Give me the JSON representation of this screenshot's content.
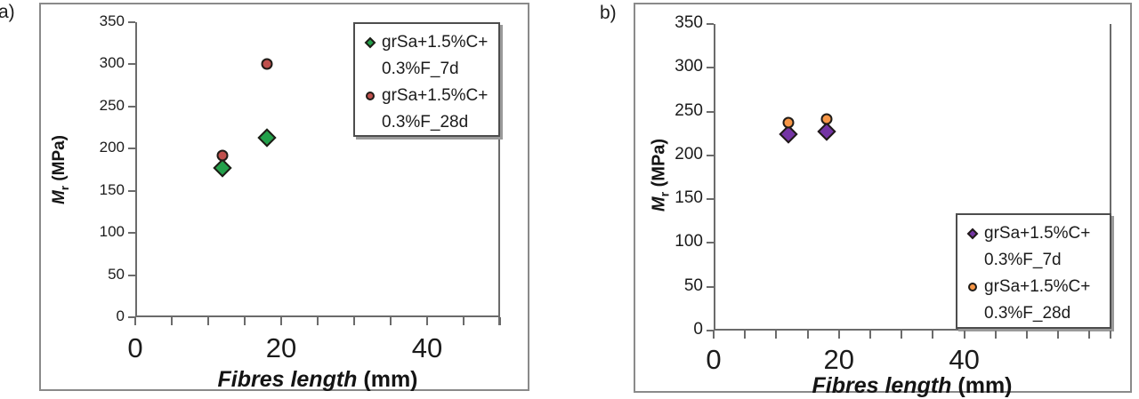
{
  "colors": {
    "background": "#ffffff",
    "panel_border": "#8a8a8a",
    "axis_line": "#6b6b6b",
    "text": "#1b1b1b",
    "legend_border": "#4d4d4d",
    "marker_outline": "#1f1b17",
    "series_a_7d": "#22A04A",
    "series_a_28d": "#C0504D",
    "series_b_7d": "#7434A4",
    "series_b_28d": "#F79646"
  },
  "chart_data": [
    {
      "type": "scatter",
      "panel_label": "a)",
      "xlabel_italic": "Fibres length",
      "xlabel_rest": " (mm)",
      "ylabel_italic": "M",
      "ylabel_sub": "r",
      "ylabel_rest": " (MPa)",
      "xlim": [
        0,
        50
      ],
      "ylim": [
        0,
        350
      ],
      "x_ticks_labeled": [
        0,
        20,
        40
      ],
      "x_minor_tick_step": 5,
      "y_ticks": [
        0,
        50,
        100,
        150,
        200,
        250,
        300,
        350
      ],
      "grid": "off",
      "legend_position": "top-right",
      "series": [
        {
          "name": "grSa+1.5%C+0.3%F_7d",
          "legend_lines": [
            "grSa+1.5%C+",
            "0.3%F_7d"
          ],
          "marker": "diamond",
          "color": "#22A04A",
          "x": [
            12,
            18
          ],
          "y": [
            177,
            213
          ]
        },
        {
          "name": "grSa+1.5%C+0.3%F_28d",
          "legend_lines": [
            "grSa+1.5%C+",
            "0.3%F_28d"
          ],
          "marker": "circle",
          "color": "#C0504D",
          "x": [
            12,
            18
          ],
          "y": [
            192,
            300
          ]
        }
      ]
    },
    {
      "type": "scatter",
      "panel_label": "b)",
      "xlabel_italic": "Fibres length",
      "xlabel_rest": " (mm)",
      "ylabel_italic": "M",
      "ylabel_sub": "r",
      "ylabel_rest": " (MPa)",
      "xlim": [
        0,
        50
      ],
      "ylim": [
        0,
        350
      ],
      "x_ticks_labeled": [
        0,
        20,
        40
      ],
      "x_minor_tick_step": 5,
      "y_ticks": [
        0,
        50,
        100,
        150,
        200,
        250,
        300,
        350
      ],
      "grid": "off",
      "legend_position": "bottom-right",
      "series": [
        {
          "name": "grSa+1.5%C+0.3%F_7d",
          "legend_lines": [
            "grSa+1.5%C+",
            "0.3%F_7d"
          ],
          "marker": "diamond",
          "color": "#7434A4",
          "x": [
            12,
            18
          ],
          "y": [
            224,
            227
          ]
        },
        {
          "name": "grSa+1.5%C+0.3%F_28d",
          "legend_lines": [
            "grSa+1.5%C+",
            "0.3%F_28d"
          ],
          "marker": "circle",
          "color": "#F79646",
          "x": [
            12,
            18
          ],
          "y": [
            237,
            241
          ]
        }
      ]
    }
  ]
}
